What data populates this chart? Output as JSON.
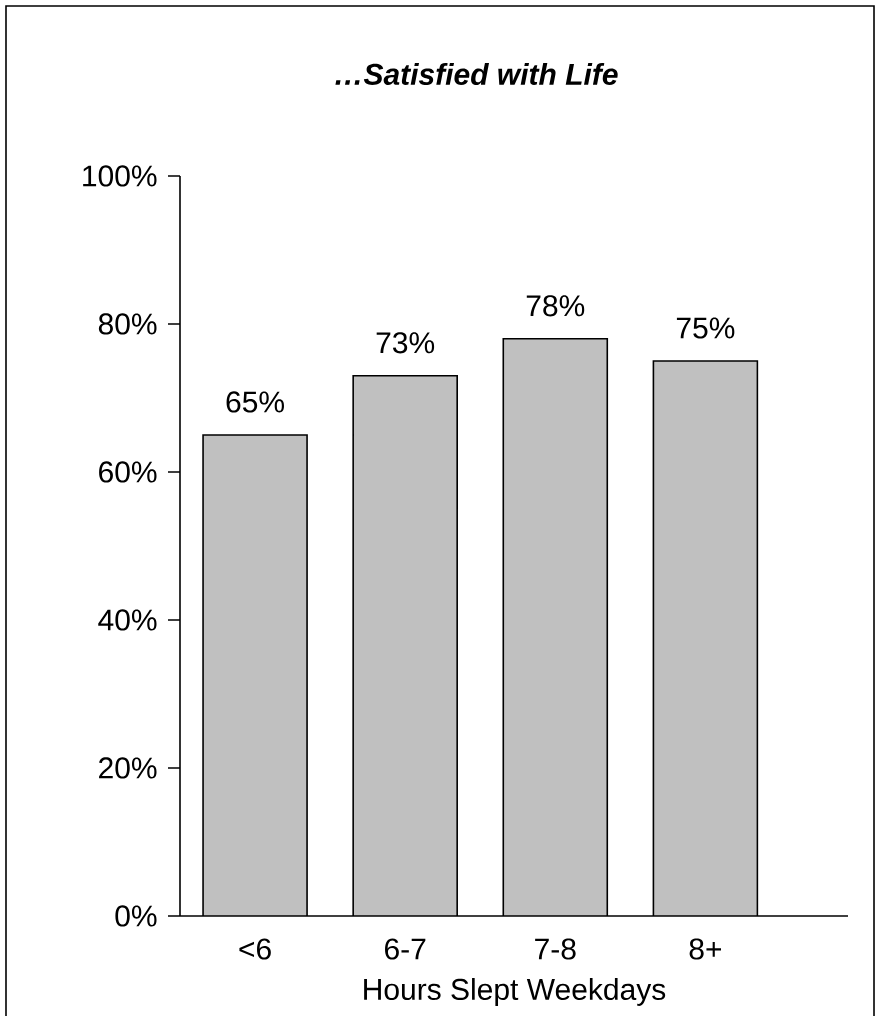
{
  "chart_data": {
    "type": "bar",
    "title": "…Satisfied with Life",
    "xlabel": "Hours Slept Weekdays",
    "categories": [
      "<6",
      "6-7",
      "7-8",
      "8+"
    ],
    "values": [
      65,
      73,
      78,
      75
    ],
    "value_labels": [
      "65%",
      "73%",
      "78%",
      "75%"
    ],
    "color": "#c0c0c0",
    "ylim": [
      0,
      100
    ],
    "yticks": [
      {
        "value": 0,
        "label": "0%"
      },
      {
        "value": 20,
        "label": "20%"
      },
      {
        "value": 40,
        "label": "40%"
      },
      {
        "value": 60,
        "label": "60%"
      },
      {
        "value": 80,
        "label": "80%"
      },
      {
        "value": 100,
        "label": "100%"
      }
    ],
    "grid": false
  }
}
